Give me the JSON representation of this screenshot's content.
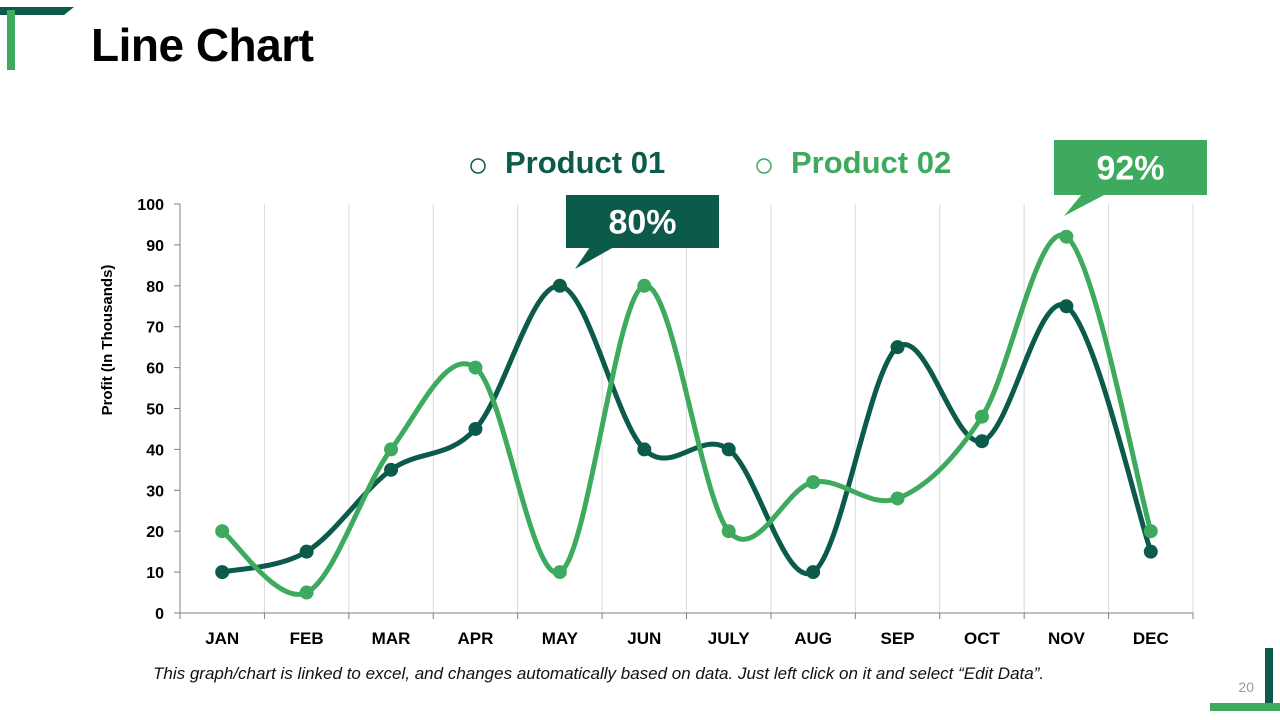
{
  "slide": {
    "title": "Line Chart",
    "page_number": "20",
    "footnote": "This graph/chart is linked to excel, and changes automatically based on data. Just left click on it and select “Edit Data”."
  },
  "colors": {
    "dark_green": "#0b5a4a",
    "light_green": "#3daa5e",
    "grid": "#d9d9d9"
  },
  "chart_data": {
    "type": "line",
    "title": "",
    "xlabel": "",
    "ylabel": "Profit (In Thousands)",
    "ylim": [
      0,
      100
    ],
    "yticks": [
      0,
      10,
      20,
      30,
      40,
      50,
      60,
      70,
      80,
      90,
      100
    ],
    "grid": "vertical",
    "legend_position": "top",
    "categories": [
      "JAN",
      "FEB",
      "MAR",
      "APR",
      "MAY",
      "JUN",
      "JULY",
      "AUG",
      "SEP",
      "OCT",
      "NOV",
      "DEC"
    ],
    "series": [
      {
        "name": "Product 01",
        "color": "#0b5a4a",
        "values": [
          10,
          15,
          35,
          45,
          80,
          40,
          40,
          10,
          65,
          42,
          75,
          15
        ]
      },
      {
        "name": "Product 02",
        "color": "#3daa5e",
        "values": [
          20,
          5,
          40,
          60,
          10,
          80,
          20,
          32,
          28,
          48,
          92,
          20
        ]
      }
    ],
    "callouts": [
      {
        "text": "80%",
        "series": 0,
        "category": "MAY",
        "color": "#0b5a4a"
      },
      {
        "text": "92%",
        "series": 1,
        "category": "NOV",
        "color": "#3daa5e"
      }
    ]
  }
}
